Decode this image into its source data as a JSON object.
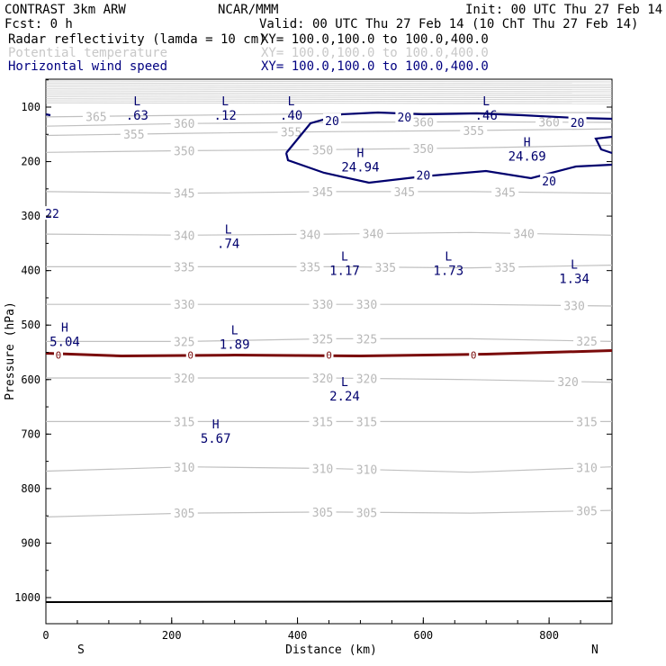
{
  "header": {
    "model": "CONTRAST  3km ARW",
    "org": "NCAR/MMM",
    "init": "Init: 00 UTC Thu 27 Feb 14",
    "fcst": "Fcst:     0 h",
    "valid": "Valid: 00 UTC Thu 27 Feb 14 (10 ChT Thu 27 Feb 14)"
  },
  "fields": [
    {
      "name": "Radar reflectivity (lamda = 10 cm)",
      "xy": "XY= 100.0,100.0 to 100.0,400.0",
      "color": "#000000"
    },
    {
      "name": "Potential temperature",
      "xy": "XY= 100.0,100.0 to 100.0,400.0",
      "color": "#c8c8c8"
    },
    {
      "name": "Horizontal wind speed",
      "xy": "XY= 100.0,100.0 to 100.0,400.0",
      "color": "#000080"
    }
  ],
  "chart_data": {
    "type": "contour-cross-section",
    "xlabel": "Distance (km)",
    "ylabel": "Pressure (hPa)",
    "xlim": [
      0,
      900
    ],
    "ylim": [
      1050,
      50
    ],
    "x_ticks": [
      "0",
      "200",
      "400",
      "600",
      "800"
    ],
    "y_ticks": [
      "100",
      "200",
      "300",
      "400",
      "500",
      "600",
      "700",
      "800",
      "900",
      "1000"
    ],
    "x_end_labels": {
      "left": "S",
      "right": "N"
    },
    "theta_contours": [
      {
        "level": 365,
        "p": [
          118,
          115,
          112,
          110,
          110
        ]
      },
      {
        "level": 360,
        "p": [
          135,
          130,
          128,
          127,
          128
        ]
      },
      {
        "level": 355,
        "p": [
          152,
          148,
          145,
          143,
          140
        ]
      },
      {
        "level": 350,
        "p": [
          183,
          180,
          178,
          175,
          170
        ]
      },
      {
        "level": 345,
        "p": [
          255,
          258,
          255,
          255,
          258
        ]
      },
      {
        "level": 340,
        "p": [
          333,
          335,
          333,
          330,
          335
        ]
      },
      {
        "level": 335,
        "p": [
          393,
          393,
          393,
          395,
          390
        ]
      },
      {
        "level": 330,
        "p": [
          462,
          462,
          462,
          462,
          465
        ]
      },
      {
        "level": 325,
        "p": [
          530,
          530,
          525,
          525,
          530
        ]
      },
      {
        "level": 320,
        "p": [
          597,
          597,
          597,
          600,
          605
        ]
      },
      {
        "level": 315,
        "p": [
          677,
          677,
          677,
          677,
          677
        ]
      },
      {
        "level": 310,
        "p": [
          768,
          760,
          763,
          770,
          760
        ]
      },
      {
        "level": 305,
        "p": [
          852,
          845,
          843,
          845,
          840
        ]
      }
    ],
    "theta_label_positions": [
      {
        "level": 365,
        "labels_x": [
          80
        ]
      },
      {
        "level": 360,
        "labels_x": [
          220,
          600,
          800
        ]
      },
      {
        "level": 355,
        "labels_x": [
          140,
          390,
          680
        ]
      },
      {
        "level": 350,
        "labels_x": [
          220,
          440,
          600
        ]
      },
      {
        "level": 345,
        "labels_x": [
          220,
          440,
          570,
          730
        ]
      },
      {
        "level": 340,
        "labels_x": [
          220,
          420,
          520,
          760
        ]
      },
      {
        "level": 335,
        "labels_x": [
          220,
          420,
          540,
          730
        ]
      },
      {
        "level": 330,
        "labels_x": [
          220,
          440,
          510,
          840
        ]
      },
      {
        "level": 325,
        "labels_x": [
          220,
          440,
          510,
          860
        ]
      },
      {
        "level": 320,
        "labels_x": [
          220,
          440,
          510,
          830
        ]
      },
      {
        "level": 315,
        "labels_x": [
          220,
          440,
          510,
          860
        ]
      },
      {
        "level": 310,
        "labels_x": [
          220,
          440,
          510,
          860
        ]
      },
      {
        "level": 305,
        "labels_x": [
          220,
          440,
          510,
          860
        ]
      }
    ],
    "reflectivity_contour": {
      "level": 0,
      "p": 555,
      "marker_x": [
        20,
        230,
        450,
        680
      ]
    },
    "extremes": [
      {
        "type": "L",
        "value": ".63",
        "x": 145,
        "p": 110
      },
      {
        "type": "L",
        "value": ".12",
        "x": 285,
        "p": 110
      },
      {
        "type": "L",
        "value": ".40",
        "x": 390,
        "p": 110
      },
      {
        "type": "L",
        "value": ".46",
        "x": 700,
        "p": 110
      },
      {
        "type": "H",
        "value": "24.69",
        "x": 765,
        "p": 185
      },
      {
        "type": "H",
        "value": "24.94",
        "x": 500,
        "p": 205
      },
      {
        "type": "L",
        "value": ".74",
        "x": 290,
        "p": 345
      },
      {
        "type": "L",
        "value": "1.17",
        "x": 475,
        "p": 395
      },
      {
        "type": "L",
        "value": "1.73",
        "x": 640,
        "p": 395
      },
      {
        "type": "L",
        "value": "1.34",
        "x": 840,
        "p": 410
      },
      {
        "type": "H",
        "value": "5.04",
        "x": 30,
        "p": 525
      },
      {
        "type": "L",
        "value": "1.89",
        "x": 300,
        "p": 530
      },
      {
        "type": "L",
        "value": "2.24",
        "x": 475,
        "p": 625
      },
      {
        "type": "H",
        "value": "5.67",
        "x": 270,
        "p": 703
      }
    ],
    "wind_contour_labels": [
      {
        "value": "20",
        "x": 455,
        "p": 125
      },
      {
        "value": "20",
        "x": 570,
        "p": 118
      },
      {
        "value": "20",
        "x": 845,
        "p": 128
      },
      {
        "value": "20",
        "x": 600,
        "p": 225
      },
      {
        "value": "20",
        "x": 800,
        "p": 235
      },
      {
        "value": "22",
        "x": 10,
        "p": 295
      }
    ]
  }
}
